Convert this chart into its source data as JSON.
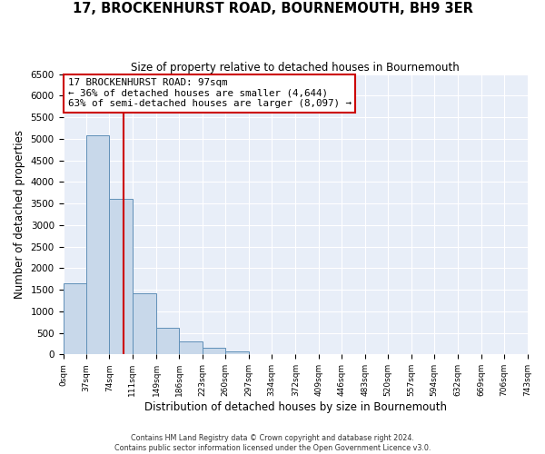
{
  "title": "17, BROCKENHURST ROAD, BOURNEMOUTH, BH9 3ER",
  "subtitle": "Size of property relative to detached houses in Bournemouth",
  "xlabel": "Distribution of detached houses by size in Bournemouth",
  "ylabel": "Number of detached properties",
  "footer_lines": [
    "Contains HM Land Registry data © Crown copyright and database right 2024.",
    "Contains public sector information licensed under the Open Government Licence v3.0."
  ],
  "bin_edges": [
    0,
    37,
    74,
    111,
    149,
    186,
    223,
    260,
    297,
    334,
    372,
    409,
    446,
    483,
    520,
    557,
    594,
    632,
    669,
    706,
    743
  ],
  "bin_counts": [
    1650,
    5075,
    3600,
    1425,
    615,
    305,
    145,
    60,
    0,
    0,
    0,
    0,
    0,
    0,
    0,
    0,
    0,
    0,
    0,
    0
  ],
  "bar_color": "#c8d8ea",
  "bar_edge_color": "#6090b8",
  "vline_x": 97,
  "vline_color": "#cc0000",
  "annotation_text": "17 BROCKENHURST ROAD: 97sqm\n← 36% of detached houses are smaller (4,644)\n63% of semi-detached houses are larger (8,097) →",
  "annotation_box_color": "white",
  "annotation_box_edge": "#cc0000",
  "ylim": [
    0,
    6500
  ],
  "yticks": [
    0,
    500,
    1000,
    1500,
    2000,
    2500,
    3000,
    3500,
    4000,
    4500,
    5000,
    5500,
    6000,
    6500
  ],
  "tick_labels": [
    "0sqm",
    "37sqm",
    "74sqm",
    "111sqm",
    "149sqm",
    "186sqm",
    "223sqm",
    "260sqm",
    "297sqm",
    "334sqm",
    "372sqm",
    "409sqm",
    "446sqm",
    "483sqm",
    "520sqm",
    "557sqm",
    "594sqm",
    "632sqm",
    "669sqm",
    "706sqm",
    "743sqm"
  ],
  "background_color": "#ffffff",
  "plot_bg_color": "#e8eef8",
  "grid_color": "#ffffff"
}
